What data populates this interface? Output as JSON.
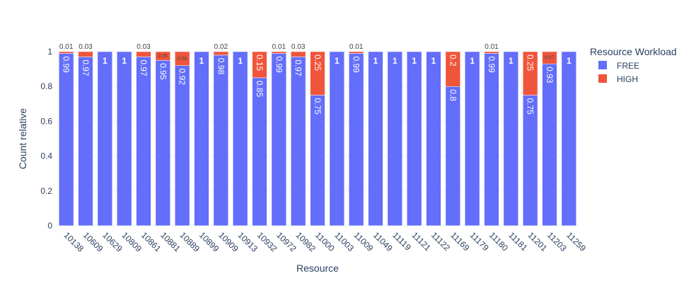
{
  "chart_data": {
    "type": "bar",
    "barmode": "stack",
    "xlabel": "Resource",
    "ylabel": "Count relative",
    "ylim": [
      0,
      1
    ],
    "yticks": [
      "0",
      "0.2",
      "0.4",
      "0.6",
      "0.8",
      "1"
    ],
    "legend": {
      "title": "Resource Workload",
      "placement": "right"
    },
    "categories": [
      "10138",
      "10609",
      "10629",
      "10809",
      "10861",
      "10881",
      "10889",
      "10899",
      "10909",
      "10913",
      "10932",
      "10972",
      "10982",
      "11000",
      "11003",
      "11009",
      "11049",
      "11119",
      "11121",
      "11122",
      "11169",
      "11179",
      "11180",
      "11181",
      "11201",
      "11203",
      "11259"
    ],
    "series": [
      {
        "name": "FREE",
        "color": "#636efa",
        "values": [
          0.99,
          0.97,
          1,
          1,
          0.97,
          0.95,
          0.92,
          1,
          0.98,
          1,
          0.85,
          0.99,
          0.97,
          0.75,
          1,
          0.99,
          1,
          1,
          1,
          1,
          0.8,
          1,
          0.99,
          1,
          0.75,
          0.93,
          1
        ],
        "labels": [
          "0.99",
          "0.97",
          "1",
          "1",
          "0.97",
          "0.95",
          "0.92",
          "1",
          "0.98",
          "1",
          "0.85",
          "0.99",
          "0.97",
          "0.75",
          "1",
          "0.99",
          "1",
          "1",
          "1",
          "1",
          "0.8",
          "1",
          "0.99",
          "1",
          "0.75",
          "0.93",
          "1"
        ]
      },
      {
        "name": "HIGH",
        "color": "#ef553b",
        "values": [
          0.01,
          0.03,
          0,
          0,
          0.03,
          0.05,
          0.08,
          0,
          0.02,
          0,
          0.15,
          0.01,
          0.03,
          0.25,
          0,
          0.01,
          0,
          0,
          0,
          0,
          0.2,
          0,
          0.01,
          0,
          0.25,
          0.07,
          0
        ],
        "labels": [
          "0.01",
          "0.03",
          "",
          "",
          "0.03",
          "0.05",
          "0.08",
          "",
          "0.02",
          "",
          "0.15",
          "0.01",
          "0.03",
          "0.25",
          "",
          "0.01",
          "",
          "",
          "",
          "",
          "0.2",
          "",
          "0.01",
          "",
          "0.25",
          "0.07",
          ""
        ]
      }
    ]
  }
}
